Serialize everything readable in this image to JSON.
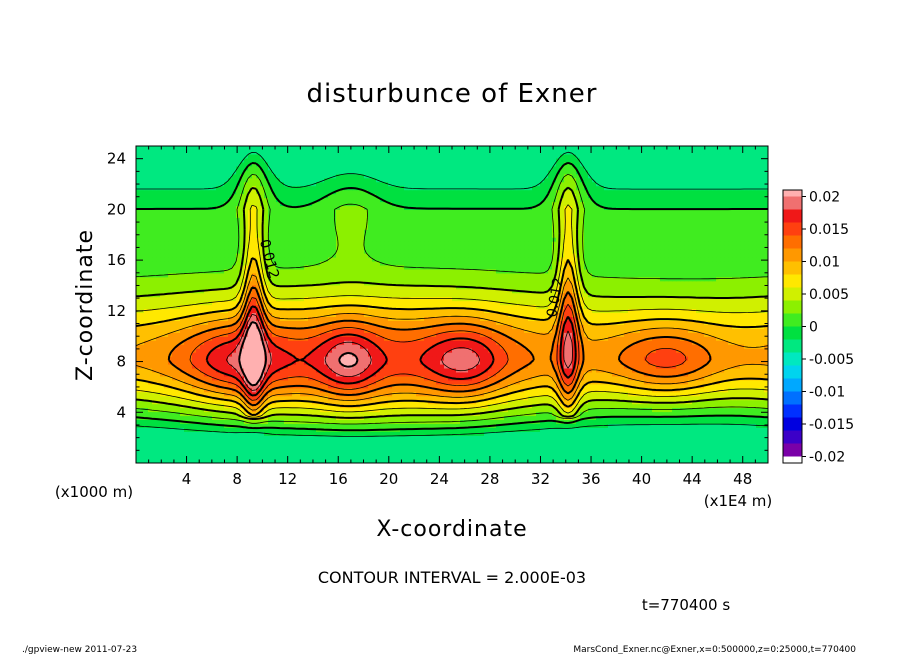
{
  "chart_data": {
    "type": "heatmap",
    "title": "disturbunce of Exner",
    "xlabel": "X-coordinate",
    "ylabel": "Z-coordinate",
    "x_unit": "(x1E4 m)",
    "y_unit": "(x1000 m)",
    "xlim": [
      0,
      50
    ],
    "ylim": [
      0,
      25
    ],
    "x_ticks": [
      4,
      8,
      12,
      16,
      20,
      24,
      28,
      32,
      36,
      40,
      44,
      48
    ],
    "y_ticks": [
      4,
      8,
      12,
      16,
      20,
      24
    ],
    "contour_interval": "CONTOUR INTERVAL = 2.000E-03",
    "contour_labels": [
      {
        "text": "0.012",
        "x": 10.2,
        "y": 16.0
      },
      {
        "text": "0.012",
        "x": 33.5,
        "y": 13.0
      }
    ],
    "colorbar": {
      "ticks": [
        "0.02",
        "0.015",
        "0.01",
        "0.005",
        "0",
        "-0.005",
        "-0.01",
        "-0.015",
        "-0.02"
      ],
      "levels": [
        {
          "from": -0.02,
          "to": -0.018,
          "color": "#7a00a8"
        },
        {
          "from": -0.018,
          "to": -0.016,
          "color": "#3c00c8"
        },
        {
          "from": -0.016,
          "to": -0.014,
          "color": "#0000e0"
        },
        {
          "from": -0.014,
          "to": -0.012,
          "color": "#0030ff"
        },
        {
          "from": -0.012,
          "to": -0.01,
          "color": "#0070ff"
        },
        {
          "from": -0.01,
          "to": -0.008,
          "color": "#00a8ff"
        },
        {
          "from": -0.008,
          "to": -0.006,
          "color": "#00d4ee"
        },
        {
          "from": -0.006,
          "to": -0.004,
          "color": "#00e8c0"
        },
        {
          "from": -0.004,
          "to": -0.002,
          "color": "#00e880"
        },
        {
          "from": -0.002,
          "to": 0.0,
          "color": "#00e040"
        },
        {
          "from": 0.0,
          "to": 0.002,
          "color": "#40ec20"
        },
        {
          "from": 0.002,
          "to": 0.004,
          "color": "#8cf000"
        },
        {
          "from": 0.004,
          "to": 0.006,
          "color": "#d0f000"
        },
        {
          "from": 0.006,
          "to": 0.008,
          "color": "#ffe800"
        },
        {
          "from": 0.008,
          "to": 0.01,
          "color": "#ffc000"
        },
        {
          "from": 0.01,
          "to": 0.012,
          "color": "#ff9800"
        },
        {
          "from": 0.012,
          "to": 0.014,
          "color": "#ff6e00"
        },
        {
          "from": 0.014,
          "to": 0.016,
          "color": "#ff4010"
        },
        {
          "from": 0.016,
          "to": 0.018,
          "color": "#f01818"
        },
        {
          "from": 0.018,
          "to": 0.02,
          "color": "#f07070"
        },
        {
          "from": 0.02,
          "to": 0.022,
          "color": "#ffb0b0"
        }
      ]
    },
    "features": {
      "peaks": [
        {
          "x": 9.3,
          "z": 8.5,
          "value": 0.021
        },
        {
          "x": 16.8,
          "z": 7.8,
          "value": 0.021
        },
        {
          "x": 34.2,
          "z": 8.0,
          "value": 0.021
        }
      ]
    }
  },
  "footer": {
    "time": "t=770400 s",
    "left": "./gpview-new   2011-07-23",
    "right": "MarsCond_Exner.nc@Exner,x=0:500000,z=0:25000,t=770400"
  }
}
